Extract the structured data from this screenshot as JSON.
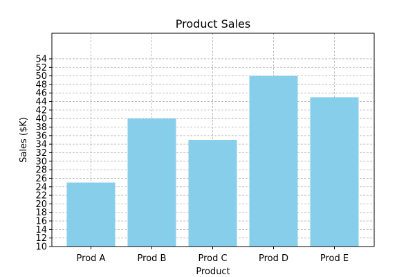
{
  "chart_data": {
    "type": "bar",
    "title": "Product Sales",
    "xlabel": "Product",
    "ylabel": "Sales ($K)",
    "categories": [
      "Prod A",
      "Prod B",
      "Prod C",
      "Prod D",
      "Prod E"
    ],
    "values": [
      25,
      40,
      35,
      50,
      45
    ],
    "ylim": [
      10,
      60
    ],
    "yticks": [
      10,
      12,
      14,
      16,
      18,
      20,
      22,
      24,
      26,
      28,
      30,
      32,
      34,
      36,
      38,
      40,
      42,
      44,
      46,
      48,
      50,
      52,
      54
    ],
    "grid": true,
    "bar_color": "#87ceeb"
  }
}
